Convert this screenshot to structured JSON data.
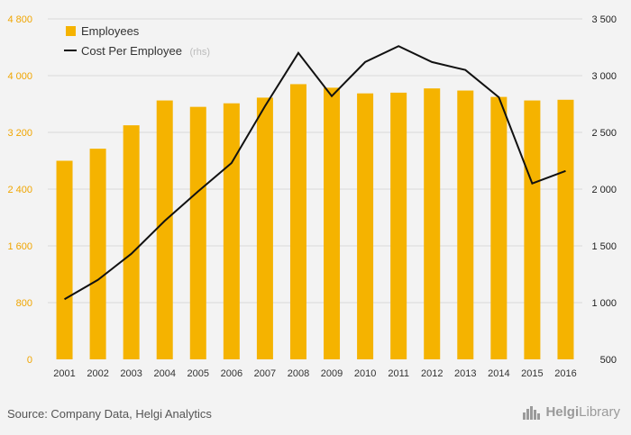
{
  "chart_data": {
    "type": "bar+line",
    "categories": [
      "2001",
      "2002",
      "2003",
      "2004",
      "2005",
      "2006",
      "2007",
      "2008",
      "2009",
      "2010",
      "2011",
      "2012",
      "2013",
      "2014",
      "2015",
      "2016"
    ],
    "series": [
      {
        "name": "Employees",
        "type": "bar",
        "axis": "left",
        "color": "#f5b300",
        "values": [
          2800,
          2970,
          3300,
          3650,
          3560,
          3610,
          3690,
          3880,
          3830,
          3750,
          3760,
          3820,
          3790,
          3700,
          3650,
          3660
        ]
      },
      {
        "name": "Cost Per Employee",
        "name_note": "(rhs)",
        "type": "line",
        "axis": "right",
        "color": "#111111",
        "values": [
          1030,
          1200,
          1430,
          1720,
          1980,
          2230,
          2730,
          3200,
          2820,
          3120,
          3260,
          3120,
          3050,
          2810,
          2050,
          2160
        ]
      }
    ],
    "y_left": {
      "min": 0,
      "max": 4800,
      "ticks": [
        0,
        800,
        1600,
        2400,
        3200,
        4000,
        4800
      ],
      "tick_labels": [
        "0",
        "800",
        "1 600",
        "2 400",
        "3 200",
        "4 000",
        "4 800"
      ]
    },
    "y_right": {
      "min": 500,
      "max": 3500,
      "ticks": [
        500,
        1000,
        1500,
        2000,
        2500,
        3000,
        3500
      ],
      "tick_labels": [
        "500",
        "1 000",
        "1 500",
        "2 000",
        "2 500",
        "3 000",
        "3 500"
      ]
    },
    "grid": true,
    "legend_position": "top-left"
  },
  "footer": {
    "source": "Source: Company Data, Helgi Analytics",
    "logo_name": "Helgi",
    "logo_suffix": "Library"
  },
  "colors": {
    "bar": "#f5b300",
    "line": "#111111",
    "left_axis_text": "#f0a500",
    "background": "#f3f3f3"
  }
}
